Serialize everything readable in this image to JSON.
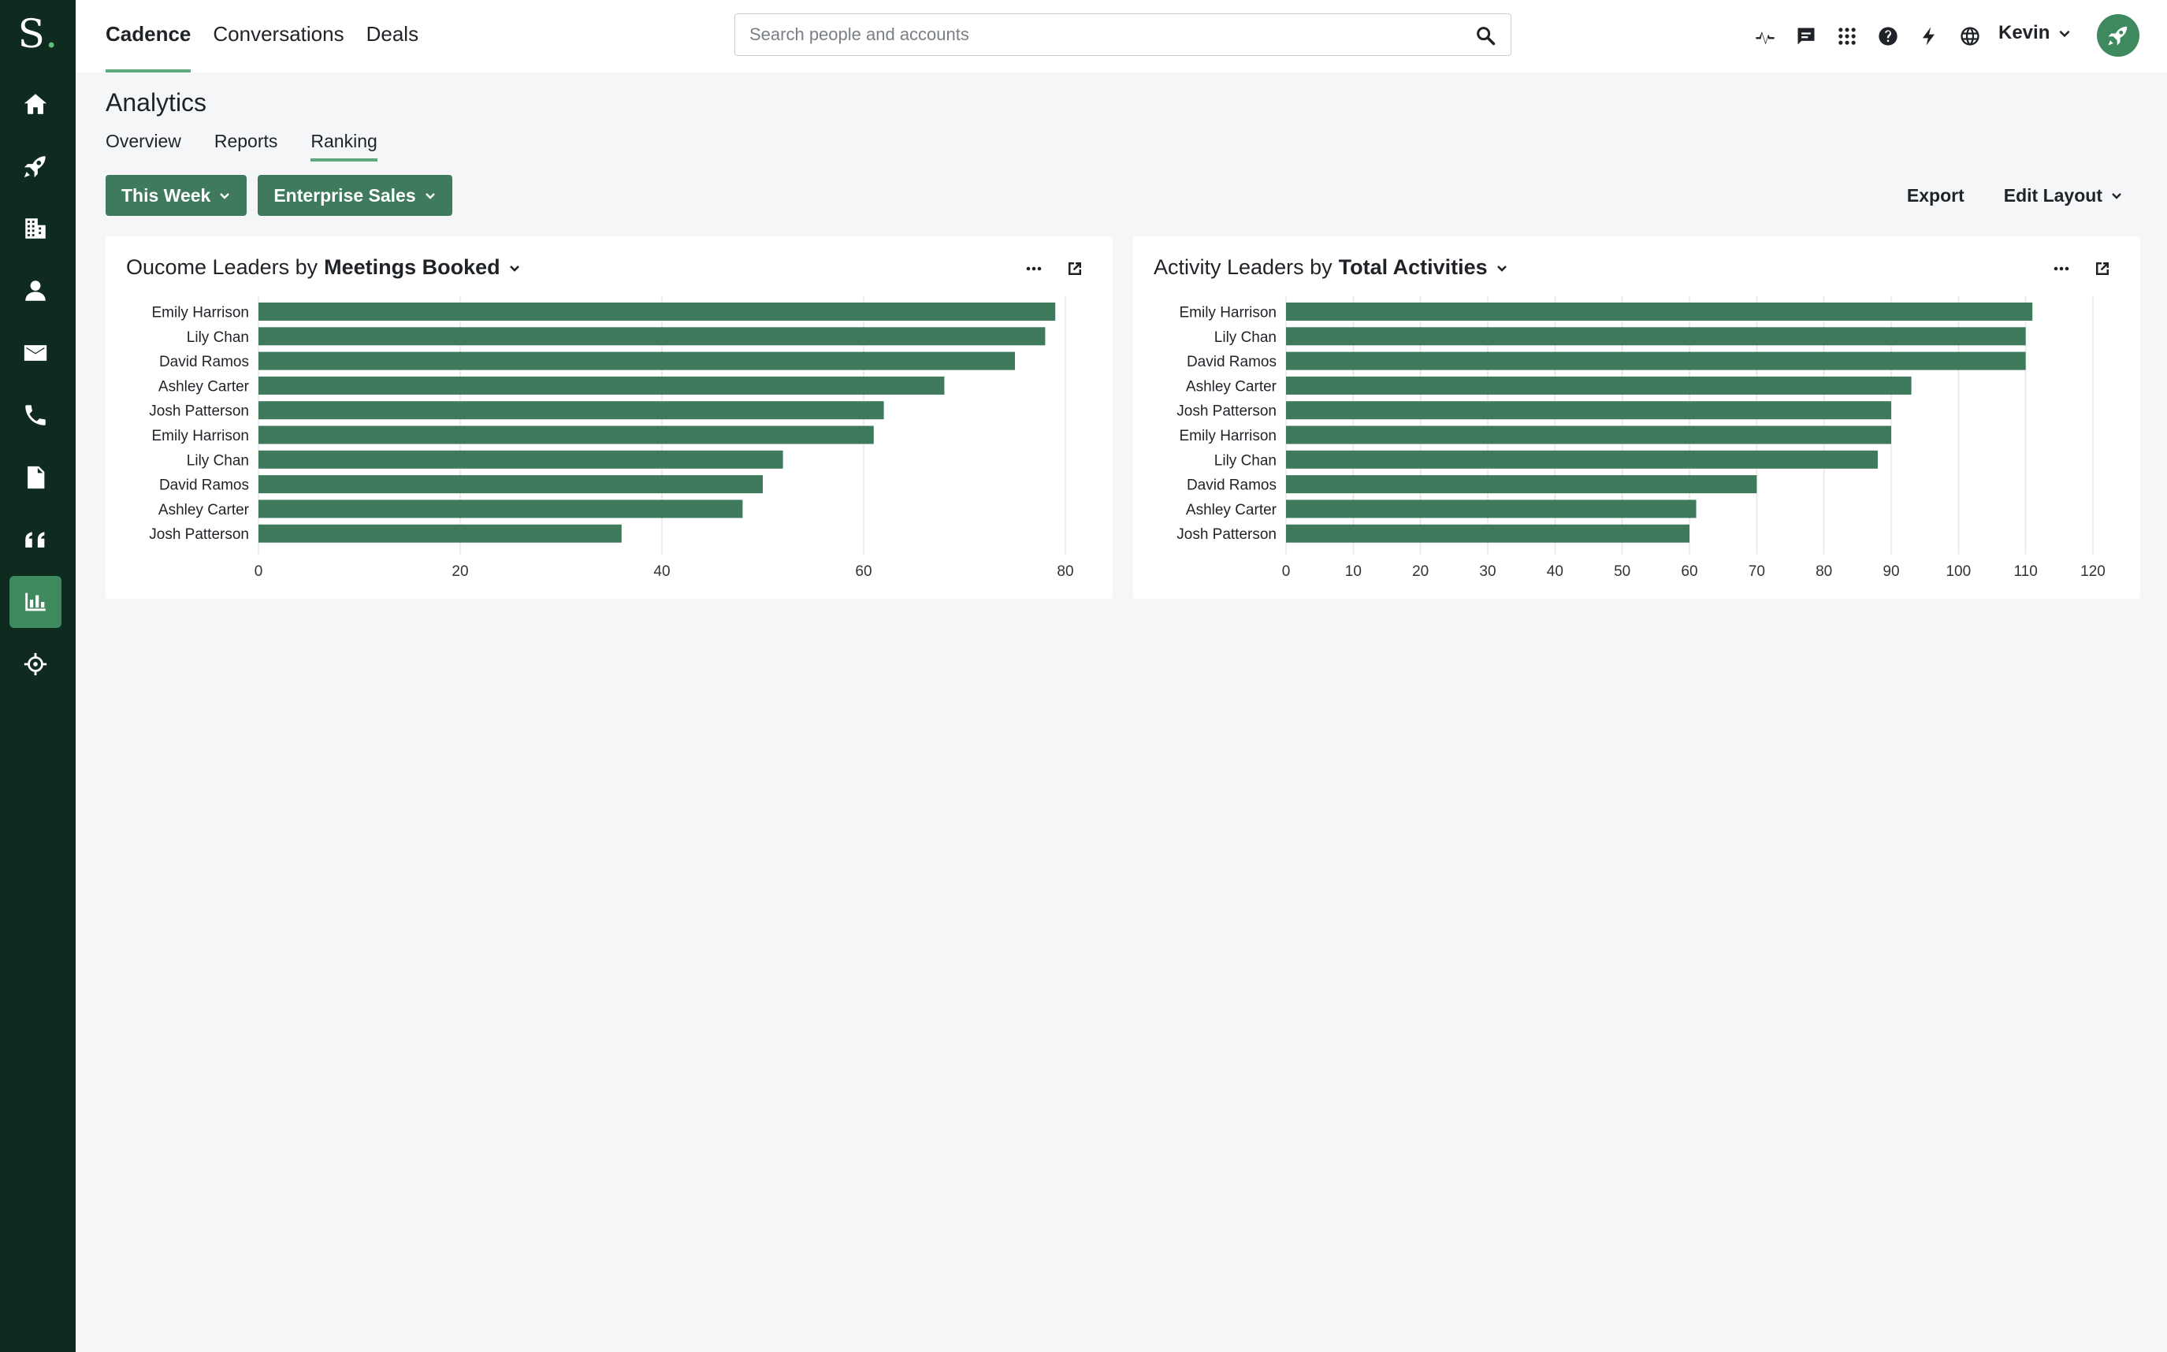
{
  "app": {
    "logo_letter": "S",
    "logo_dot": "."
  },
  "sidebar": {
    "items": [
      {
        "icon": "home-icon"
      },
      {
        "icon": "rocket-icon"
      },
      {
        "icon": "building-icon"
      },
      {
        "icon": "person-icon"
      },
      {
        "icon": "mail-icon"
      },
      {
        "icon": "phone-icon"
      },
      {
        "icon": "document-icon"
      },
      {
        "icon": "quote-icon"
      },
      {
        "icon": "bar-chart-icon",
        "active": true
      },
      {
        "icon": "crosshair-icon"
      }
    ]
  },
  "topnav": {
    "items": [
      {
        "label": "Cadence",
        "active": true
      },
      {
        "label": "Conversations"
      },
      {
        "label": "Deals"
      }
    ]
  },
  "search": {
    "placeholder": "Search people and accounts",
    "value": ""
  },
  "header_icons": [
    "activity-icon",
    "chat-icon",
    "apps-grid-icon",
    "help-icon",
    "lightning-icon",
    "globe-icon"
  ],
  "user": {
    "name": "Kevin"
  },
  "page": {
    "title": "Analytics",
    "tabs": [
      {
        "label": "Overview"
      },
      {
        "label": "Reports"
      },
      {
        "label": "Ranking",
        "active": true
      }
    ],
    "filters": {
      "time": "This Week",
      "team": "Enterprise Sales"
    },
    "actions": {
      "export": "Export",
      "edit_layout": "Edit Layout"
    }
  },
  "colors": {
    "sidebar_bg": "#0f2b1f",
    "accent": "#3e7a5b",
    "bar": "#3e7a5b",
    "tab_underline": "#5fa97c"
  },
  "cards": {
    "left": {
      "title_prefix": "Oucome Leaders by",
      "title_metric": "Meetings Booked"
    },
    "right": {
      "title_prefix": "Activity Leaders by",
      "title_metric": "Total Activities"
    }
  },
  "chart_data": [
    {
      "type": "bar",
      "orientation": "horizontal",
      "title": "Oucome Leaders by Meetings Booked",
      "categories": [
        "Emily Harrison",
        "Lily Chan",
        "David Ramos",
        "Ashley Carter",
        "Josh Patterson",
        "Emily Harrison",
        "Lily Chan",
        "David Ramos",
        "Ashley Carter",
        "Josh Patterson"
      ],
      "values": [
        79,
        78,
        75,
        68,
        62,
        61,
        52,
        50,
        48,
        36
      ],
      "xlim": [
        0,
        80
      ],
      "xticks": [
        0,
        20,
        40,
        60,
        80
      ],
      "grid": true
    },
    {
      "type": "bar",
      "orientation": "horizontal",
      "title": "Activity Leaders by Total Activities",
      "categories": [
        "Emily Harrison",
        "Lily Chan",
        "David Ramos",
        "Ashley Carter",
        "Josh Patterson",
        "Emily Harrison",
        "Lily Chan",
        "David Ramos",
        "Ashley Carter",
        "Josh Patterson"
      ],
      "values": [
        111,
        110,
        110,
        93,
        90,
        90,
        88,
        70,
        61,
        60
      ],
      "xlim": [
        0,
        120
      ],
      "xticks": [
        0,
        10,
        20,
        30,
        40,
        50,
        60,
        70,
        80,
        90,
        100,
        110,
        120
      ],
      "grid": true
    }
  ]
}
